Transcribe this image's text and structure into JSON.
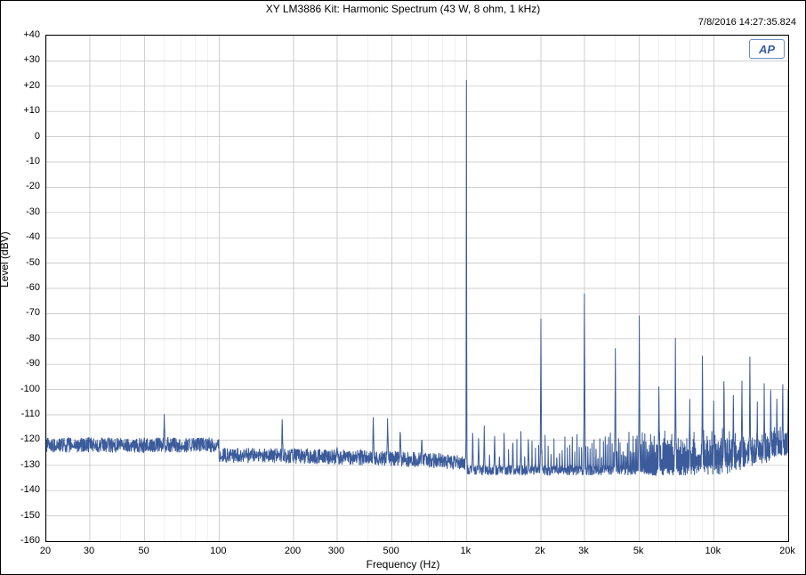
{
  "title": "XY LM3886 Kit: Harmonic Spectrum (43 W, 8 ohm, 1 kHz)",
  "timestamp": "7/8/2016 14:27:35.824",
  "badge": "AP",
  "xlabel": "Frequency (Hz)",
  "ylabel": "Level (dBV)",
  "chart": {
    "type": "line",
    "x_log": true,
    "xlim": [
      20,
      20000
    ],
    "ylim": [
      -160,
      40
    ],
    "ytick_step": 10,
    "yticks": [
      40,
      30,
      20,
      10,
      0,
      -10,
      -20,
      -30,
      -40,
      -50,
      -60,
      -70,
      -80,
      -90,
      -100,
      -110,
      -120,
      -130,
      -140,
      -150,
      -160
    ],
    "ytick_labels": [
      "+40",
      "+30",
      "+20",
      "+10",
      "0",
      "-10",
      "-20",
      "-30",
      "-40",
      "-50",
      "-60",
      "-70",
      "-80",
      "-90",
      "-100",
      "-110",
      "-120",
      "-130",
      "-140",
      "-150",
      "-160"
    ],
    "xticks": [
      20,
      30,
      50,
      100,
      200,
      300,
      500,
      1000,
      2000,
      3000,
      5000,
      10000,
      20000
    ],
    "xtick_labels": [
      "20",
      "30",
      "50",
      "100",
      "200",
      "300",
      "500",
      "1k",
      "2k",
      "3k",
      "5k",
      "10k",
      "20k"
    ],
    "grid_minor_x": [
      20,
      30,
      40,
      50,
      60,
      70,
      80,
      90,
      100,
      200,
      300,
      400,
      500,
      600,
      700,
      800,
      900,
      1000,
      2000,
      3000,
      4000,
      5000,
      6000,
      7000,
      8000,
      9000,
      10000,
      20000
    ],
    "line_color": "#3b5b9a",
    "line_width": 1,
    "grid_color": "#bfbfbf",
    "grid_color_minor": "#e0e0e0",
    "background_color": "#ffffff",
    "noise_floor_envelope_db": -128,
    "noise_jitter_db": 3,
    "noise_hf_floor_db": -132,
    "peaks": [
      {
        "hz": 60,
        "db": -109
      },
      {
        "hz": 180,
        "db": -110
      },
      {
        "hz": 300,
        "db": -123
      },
      {
        "hz": 420,
        "db": -109
      },
      {
        "hz": 480,
        "db": -110
      },
      {
        "hz": 540,
        "db": -115
      },
      {
        "hz": 660,
        "db": -118
      },
      {
        "hz": 1000,
        "db": 26
      },
      {
        "hz": 1060,
        "db": -115
      },
      {
        "hz": 1120,
        "db": -118
      },
      {
        "hz": 1180,
        "db": -113
      },
      {
        "hz": 1300,
        "db": -118
      },
      {
        "hz": 1420,
        "db": -118
      },
      {
        "hz": 1540,
        "db": -120
      },
      {
        "hz": 1660,
        "db": -120
      },
      {
        "hz": 1780,
        "db": -120
      },
      {
        "hz": 2000,
        "db": -72
      },
      {
        "hz": 3000,
        "db": -59
      },
      {
        "hz": 4000,
        "db": -83
      },
      {
        "hz": 5000,
        "db": -69
      },
      {
        "hz": 6000,
        "db": -97
      },
      {
        "hz": 7000,
        "db": -78
      },
      {
        "hz": 8000,
        "db": -103
      },
      {
        "hz": 9000,
        "db": -82
      },
      {
        "hz": 10000,
        "db": -104
      },
      {
        "hz": 11000,
        "db": -90
      },
      {
        "hz": 12000,
        "db": -100
      },
      {
        "hz": 13000,
        "db": -95
      },
      {
        "hz": 14000,
        "db": -85
      },
      {
        "hz": 15000,
        "db": -104
      },
      {
        "hz": 16000,
        "db": -96
      },
      {
        "hz": 17000,
        "db": -93
      },
      {
        "hz": 18000,
        "db": -100
      },
      {
        "hz": 19000,
        "db": -93
      },
      {
        "hz": 20000,
        "db": -100
      }
    ],
    "hf_comb_start_hz": 1000,
    "hf_comb_step_hz": 60,
    "hf_comb_peak_db": -117,
    "tick_font_size": 11,
    "label_font_size": 12,
    "title_font_size": 12
  }
}
